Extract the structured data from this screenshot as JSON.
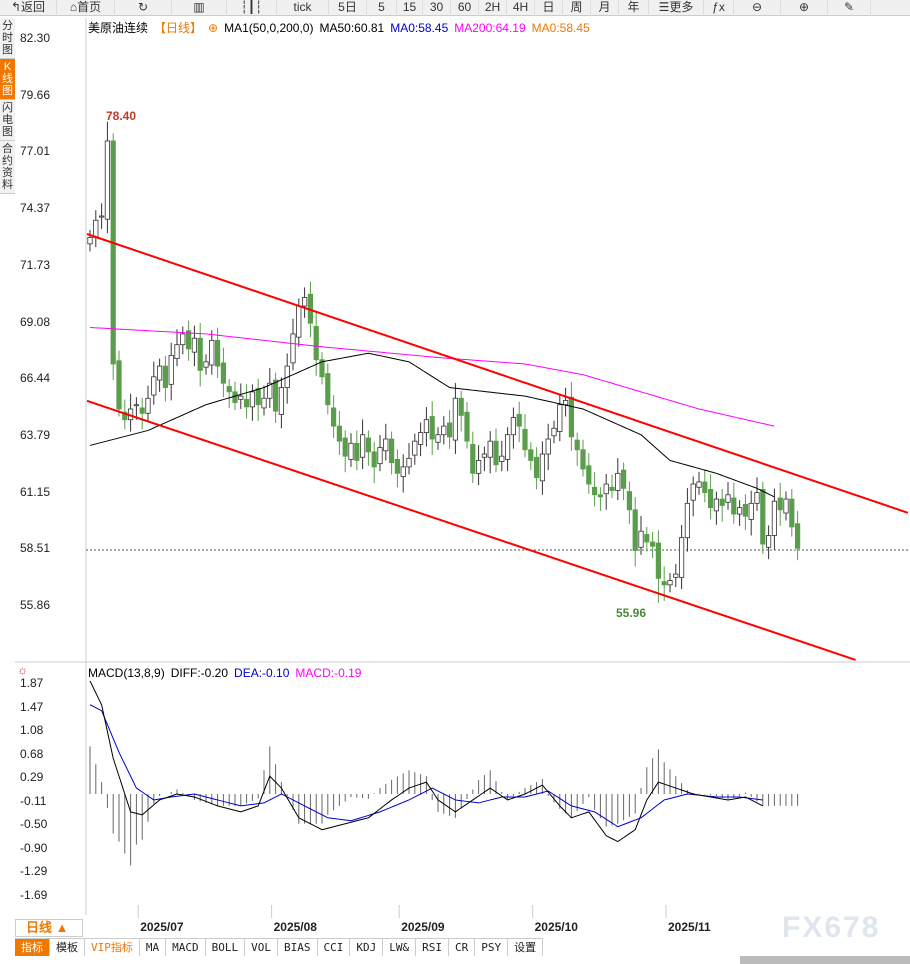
{
  "toolbar": {
    "items": [
      {
        "label": "返回",
        "icon": "back-arrow-icon",
        "w": 57
      },
      {
        "label": "首页",
        "icon": "home-icon",
        "w": 58
      },
      {
        "label": "",
        "icon": "refresh-icon",
        "w": 57
      },
      {
        "label": "",
        "icon": "bar-chart-icon",
        "w": 55
      },
      {
        "label": "",
        "icon": "candles-icon",
        "w": 50
      },
      {
        "label": "tick",
        "w": 52
      },
      {
        "label": "5日",
        "w": 38
      },
      {
        "label": "5",
        "w": 30
      },
      {
        "label": "15",
        "w": 26
      },
      {
        "label": "30",
        "w": 28
      },
      {
        "label": "60",
        "w": 28
      },
      {
        "label": "2H",
        "w": 28
      },
      {
        "label": "4H",
        "w": 28
      },
      {
        "label": "日",
        "w": 28
      },
      {
        "label": "周",
        "w": 28
      },
      {
        "label": "月",
        "w": 28
      },
      {
        "label": "年",
        "w": 30
      },
      {
        "label": "☰更多",
        "w": 55
      },
      {
        "label": "ƒx",
        "w": 30
      },
      {
        "label": "⊖",
        "w": 47
      },
      {
        "label": "⊕",
        "w": 47
      },
      {
        "label": "✎",
        "w": 43
      }
    ]
  },
  "side_tabs": [
    {
      "label": "分时图",
      "active": false
    },
    {
      "label": "K线图",
      "active": true
    },
    {
      "label": "闪电图",
      "active": false
    },
    {
      "label": "合约资料",
      "active": false
    }
  ],
  "legend": {
    "symbol": "美原油连续",
    "period": "【日线】",
    "ma_name": "MA1(50,0,200,0)",
    "ma50": "MA50:60.81",
    "ma0a": "MA0:58.45",
    "ma200": "MA200:64.19",
    "ma0b": "MA0:58.45"
  },
  "macd_legend": {
    "name": "MACD(13,8,9)",
    "diff": "DIFF:-0.20",
    "dea": "DEA:-0.10",
    "macd": "MACD:-0.19"
  },
  "colors": {
    "up": "#ffffff",
    "down": "#5a9e4b",
    "channel": "#ff0000",
    "ma50": "#000000",
    "ma200": "#ff00ff",
    "diff": "#000000",
    "dea": "#0000cc",
    "accent": "#f07800"
  },
  "chart_data": {
    "type": "candlestick",
    "yticks": [
      "82.30",
      "79.66",
      "77.01",
      "74.37",
      "71.73",
      "69.08",
      "66.44",
      "63.79",
      "61.15",
      "58.51",
      "55.86"
    ],
    "ylim": [
      55.86,
      82.3
    ],
    "max_label": "78.40",
    "min_label": "55.96",
    "last_price": 58.45,
    "closes": [
      73.0,
      73.8,
      74.0,
      77.5,
      67.1,
      65.0,
      64.5,
      65.0,
      65.2,
      64.8,
      65.5,
      66.5,
      67.0,
      66.0,
      67.5,
      68.0,
      68.5,
      67.8,
      68.3,
      66.8,
      67.2,
      68.2,
      67.0,
      66.2,
      65.8,
      65.3,
      65.6,
      65.1,
      65.8,
      65.2,
      65.5,
      66.2,
      64.9,
      66.0,
      67.0,
      68.5,
      69.8,
      70.2,
      69.0,
      67.3,
      66.5,
      65.2,
      64.2,
      63.5,
      62.8,
      63.4,
      62.6,
      63.8,
      63.0,
      62.3,
      63.2,
      63.6,
      62.5,
      62.0,
      62.3,
      62.7,
      63.5,
      63.9,
      64.5,
      63.6,
      63.8,
      64.2,
      63.7,
      65.5,
      64.7,
      63.5,
      62.0,
      62.6,
      62.9,
      63.5,
      62.4,
      62.8,
      63.8,
      64.6,
      64.2,
      63.1,
      62.6,
      61.8,
      62.9,
      63.6,
      64.1,
      65.2,
      65.4,
      63.7,
      63.1,
      62.2,
      61.5,
      61.0,
      60.9,
      61.5,
      61.2,
      62.0,
      61.3,
      60.3,
      58.4,
      59.3,
      58.8,
      58.6,
      57.1,
      56.8,
      57.0,
      57.3,
      59.0,
      60.6,
      61.5,
      61.6,
      61.1,
      60.4,
      60.8,
      60.5,
      61.0,
      60.1,
      60.4,
      60.0,
      60.6,
      61.1,
      58.7,
      59.1,
      60.7,
      60.3,
      60.8,
      59.5,
      58.5
    ],
    "ma50": [
      [
        0,
        63.3
      ],
      [
        10,
        64.0
      ],
      [
        20,
        65.2
      ],
      [
        30,
        66.0
      ],
      [
        40,
        67.2
      ],
      [
        48,
        67.6
      ],
      [
        55,
        67.2
      ],
      [
        62,
        66.0
      ],
      [
        75,
        65.6
      ],
      [
        85,
        65.0
      ],
      [
        95,
        63.8
      ],
      [
        100,
        62.6
      ],
      [
        108,
        62.0
      ],
      [
        115,
        61.3
      ],
      [
        118,
        60.9
      ]
    ],
    "ma200": [
      [
        0,
        68.8
      ],
      [
        20,
        68.5
      ],
      [
        40,
        67.9
      ],
      [
        60,
        67.4
      ],
      [
        75,
        67.1
      ],
      [
        85,
        66.6
      ],
      [
        95,
        65.8
      ],
      [
        105,
        65.0
      ],
      [
        118,
        64.2
      ]
    ],
    "channel": [
      {
        "from": [
          0,
          73.16
        ],
        "to": [
          141,
          60.16
        ]
      },
      {
        "from": [
          0,
          65.38
        ],
        "to": [
          132,
          53.3
        ]
      }
    ],
    "xlabels": [
      {
        "label": "2025/07",
        "i": 9
      },
      {
        "label": "2025/08",
        "i": 32
      },
      {
        "label": "2025/09",
        "i": 54
      },
      {
        "label": "2025/10",
        "i": 77
      },
      {
        "label": "2025/11",
        "i": 100
      }
    ],
    "macd_yticks": [
      "1.87",
      "1.47",
      "1.08",
      "0.68",
      "0.29",
      "-0.11",
      "-0.50",
      "-0.90",
      "-1.29",
      "-1.69"
    ],
    "diff": [
      [
        0,
        1.9
      ],
      [
        2,
        1.5
      ],
      [
        4,
        0.6
      ],
      [
        7,
        -0.3
      ],
      [
        9,
        -0.35
      ],
      [
        12,
        -0.1
      ],
      [
        15,
        0.0
      ],
      [
        18,
        -0.05
      ],
      [
        22,
        -0.2
      ],
      [
        26,
        -0.3
      ],
      [
        29,
        -0.2
      ],
      [
        31,
        0.3
      ],
      [
        33,
        0.1
      ],
      [
        36,
        -0.4
      ],
      [
        40,
        -0.6
      ],
      [
        44,
        -0.5
      ],
      [
        48,
        -0.4
      ],
      [
        52,
        -0.1
      ],
      [
        55,
        0.1
      ],
      [
        58,
        0.2
      ],
      [
        60,
        -0.1
      ],
      [
        63,
        -0.3
      ],
      [
        66,
        -0.1
      ],
      [
        69,
        0.1
      ],
      [
        72,
        -0.1
      ],
      [
        75,
        0.0
      ],
      [
        78,
        0.15
      ],
      [
        81,
        -0.2
      ],
      [
        83,
        -0.4
      ],
      [
        86,
        -0.3
      ],
      [
        89,
        -0.7
      ],
      [
        91,
        -0.8
      ],
      [
        94,
        -0.6
      ],
      [
        96,
        -0.1
      ],
      [
        98,
        0.2
      ],
      [
        101,
        0.1
      ],
      [
        104,
        0.0
      ],
      [
        107,
        -0.05
      ],
      [
        110,
        -0.1
      ],
      [
        113,
        -0.05
      ],
      [
        116,
        -0.2
      ]
    ],
    "dea": [
      [
        0,
        1.5
      ],
      [
        2,
        1.4
      ],
      [
        5,
        0.7
      ],
      [
        8,
        0.1
      ],
      [
        11,
        -0.1
      ],
      [
        14,
        -0.05
      ],
      [
        18,
        -0.0
      ],
      [
        22,
        -0.1
      ],
      [
        26,
        -0.2
      ],
      [
        30,
        -0.15
      ],
      [
        33,
        0.0
      ],
      [
        37,
        -0.2
      ],
      [
        41,
        -0.4
      ],
      [
        45,
        -0.45
      ],
      [
        50,
        -0.3
      ],
      [
        55,
        -0.1
      ],
      [
        59,
        0.1
      ],
      [
        63,
        -0.1
      ],
      [
        67,
        -0.15
      ],
      [
        71,
        -0.05
      ],
      [
        75,
        -0.05
      ],
      [
        79,
        0.05
      ],
      [
        83,
        -0.2
      ],
      [
        87,
        -0.3
      ],
      [
        91,
        -0.55
      ],
      [
        95,
        -0.4
      ],
      [
        99,
        -0.1
      ],
      [
        103,
        0.0
      ],
      [
        108,
        -0.05
      ],
      [
        112,
        -0.05
      ],
      [
        116,
        -0.1
      ]
    ]
  },
  "period_label": "日线 ▲",
  "bottom_tabs": [
    {
      "label": "指标",
      "style": "active"
    },
    {
      "label": "模板"
    },
    {
      "label": "VIP指标",
      "style": "vip"
    },
    {
      "label": "MA"
    },
    {
      "label": "MACD"
    },
    {
      "label": "BOLL"
    },
    {
      "label": "VOL"
    },
    {
      "label": "BIAS"
    },
    {
      "label": "CCI"
    },
    {
      "label": "KDJ"
    },
    {
      "label": "LW&"
    },
    {
      "label": "RSI"
    },
    {
      "label": "CR"
    },
    {
      "label": "PSY"
    },
    {
      "label": "设置"
    }
  ],
  "watermark": "FX678"
}
